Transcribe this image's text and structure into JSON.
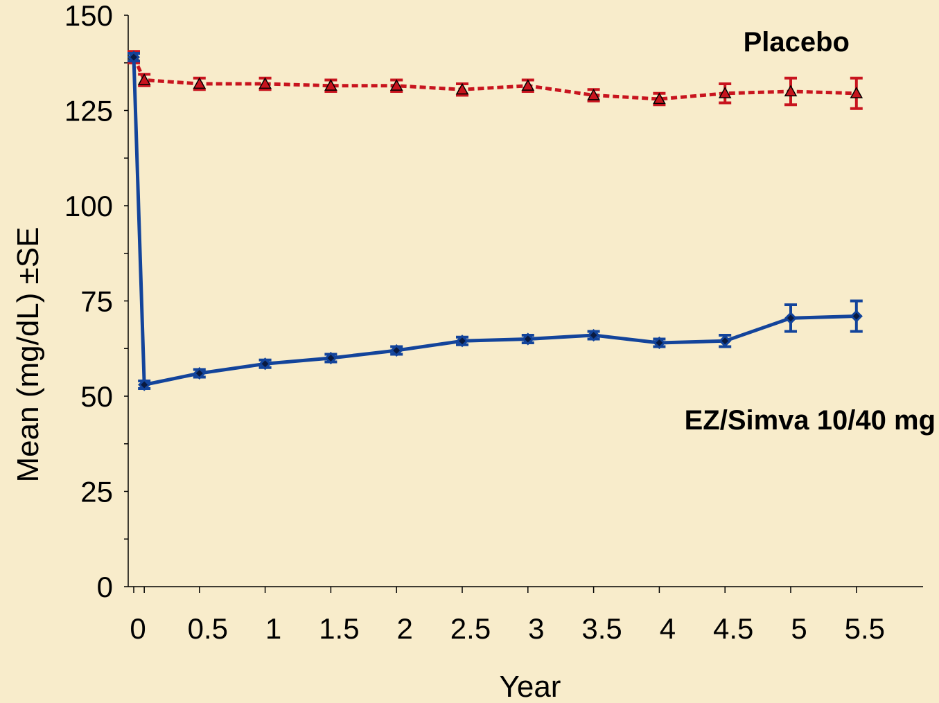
{
  "chart_data": {
    "type": "line",
    "xlabel": "Year",
    "ylabel": "Mean (mg/dL) ±SE",
    "ylim": [
      0,
      150
    ],
    "yticks": [
      "0",
      "25",
      "50",
      "75",
      "100",
      "125",
      "150"
    ],
    "xticks": [
      "0",
      "0.5",
      "1",
      "1.5",
      "2",
      "2.5",
      "3",
      "3.5",
      "4",
      "4.5",
      "5",
      "5.5"
    ],
    "grid": false,
    "series": [
      {
        "name": "Placebo",
        "color": "#c8141e",
        "line_style": "dashed",
        "marker": "triangle",
        "points": [
          {
            "x": 0,
            "y": 139,
            "se": 1.5
          },
          {
            "x": 0.08,
            "y": 133,
            "se": 1.5
          },
          {
            "x": 0.5,
            "y": 132,
            "se": 1.5
          },
          {
            "x": 1,
            "y": 132,
            "se": 1.5
          },
          {
            "x": 1.5,
            "y": 131.5,
            "se": 1.5
          },
          {
            "x": 2,
            "y": 131.5,
            "se": 1.5
          },
          {
            "x": 2.5,
            "y": 130.5,
            "se": 1.5
          },
          {
            "x": 3,
            "y": 131.5,
            "se": 1.5
          },
          {
            "x": 3.5,
            "y": 129,
            "se": 1.5
          },
          {
            "x": 4,
            "y": 128,
            "se": 1.5
          },
          {
            "x": 4.5,
            "y": 129.5,
            "se": 2.5
          },
          {
            "x": 5,
            "y": 130,
            "se": 3.5
          },
          {
            "x": 5.5,
            "y": 129.5,
            "se": 4
          }
        ]
      },
      {
        "name": "EZ/Simva 10/40 mg",
        "color": "#13449b",
        "line_style": "solid",
        "marker": "diamond",
        "points": [
          {
            "x": 0,
            "y": 139,
            "se": 1
          },
          {
            "x": 0.08,
            "y": 53,
            "se": 1
          },
          {
            "x": 0.5,
            "y": 56,
            "se": 1
          },
          {
            "x": 1,
            "y": 58.5,
            "se": 1
          },
          {
            "x": 1.5,
            "y": 60,
            "se": 1
          },
          {
            "x": 2,
            "y": 62,
            "se": 1
          },
          {
            "x": 2.5,
            "y": 64.5,
            "se": 1
          },
          {
            "x": 3,
            "y": 65,
            "se": 1
          },
          {
            "x": 3.5,
            "y": 66,
            "se": 1
          },
          {
            "x": 4,
            "y": 64,
            "se": 1
          },
          {
            "x": 4.5,
            "y": 64.5,
            "se": 1.5
          },
          {
            "x": 5,
            "y": 70.5,
            "se": 3.5
          },
          {
            "x": 5.5,
            "y": 71,
            "se": 4
          }
        ]
      }
    ]
  }
}
